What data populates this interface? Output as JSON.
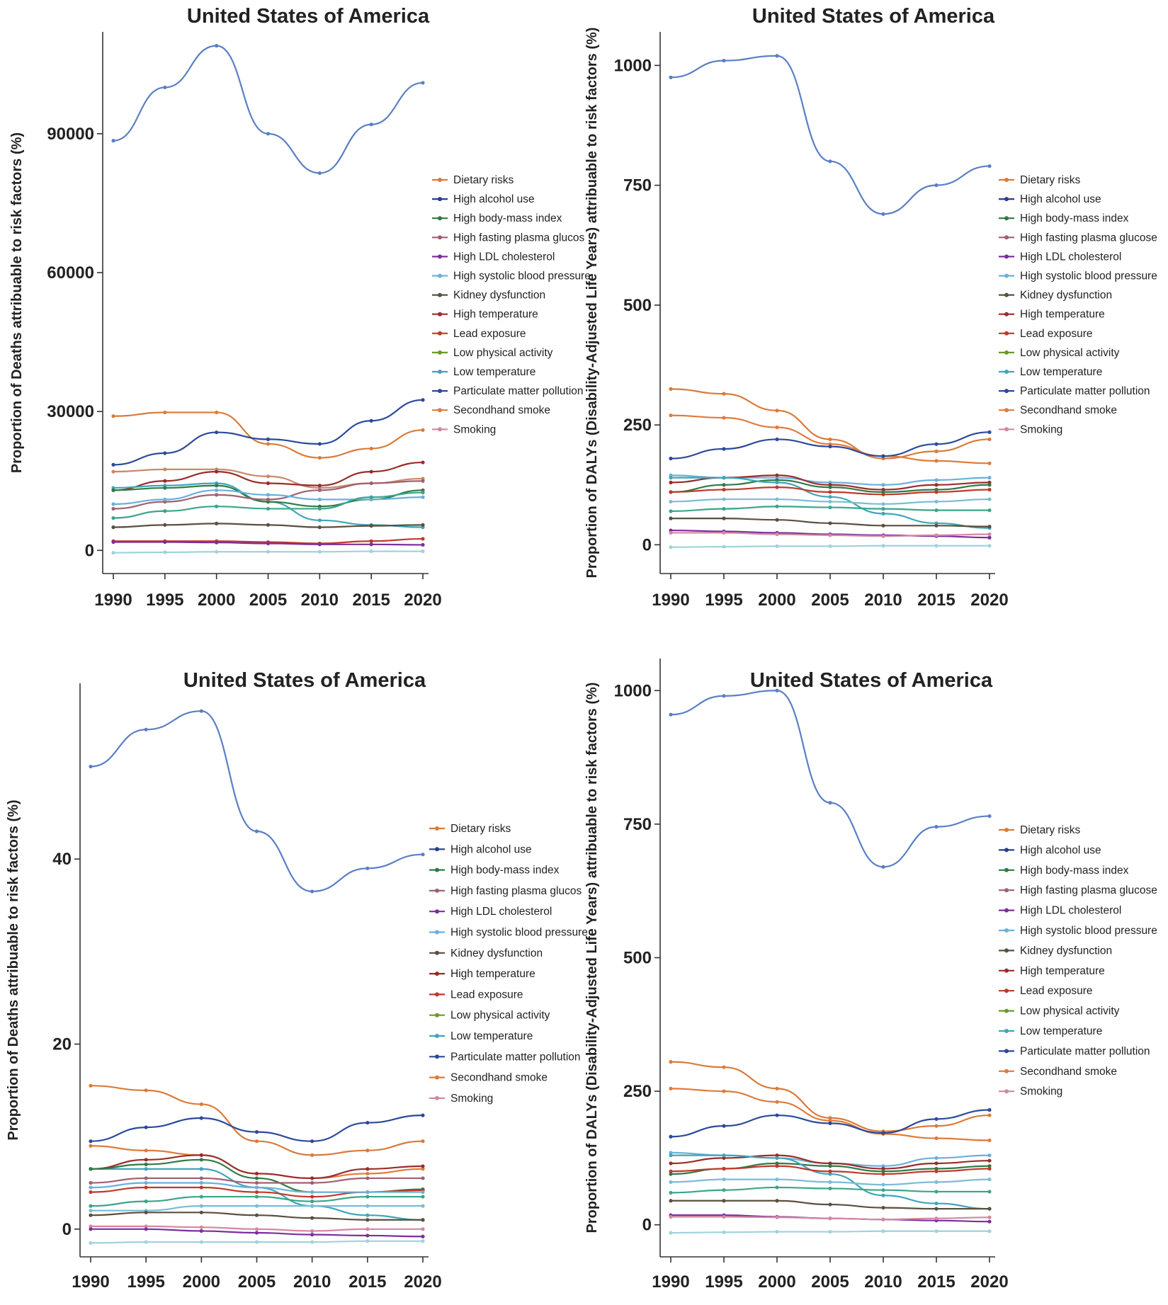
{
  "legend_items": [
    {
      "name": "Dietary risks",
      "color": "#d97b3a"
    },
    {
      "name": "High alcohol use",
      "color": "#283e8c"
    },
    {
      "name": "High body-mass index",
      "color": "#2f7a45"
    },
    {
      "name": "High fasting plasma glucos",
      "color": "#a06070"
    },
    {
      "name": "High LDL cholesterol",
      "color": "#7b2f9a"
    },
    {
      "name": "High systolic blood pressure",
      "color": "#6bb0da"
    },
    {
      "name": "Kidney dysfunction",
      "color": "#5a5040"
    },
    {
      "name": "High temperature",
      "color": "#9a2c2c"
    },
    {
      "name": "Lead exposure",
      "color": "#c0392b"
    },
    {
      "name": "Low physical activity",
      "color": "#6a9a2a"
    },
    {
      "name": "Low temperature",
      "color": "#3fa6b8"
    },
    {
      "name": "Particulate matter pollution",
      "color": "#2b4a9a"
    },
    {
      "name": "Secondhand smoke",
      "color": "#e07b3c"
    },
    {
      "name": "Smoking",
      "color": "#d487a0"
    }
  ],
  "chart_data": [
    {
      "type": "line",
      "title": "United States of America",
      "ylabel": "Proportion of Deaths attribuable to risk factors (%)",
      "xlabel": "",
      "x": [
        1990,
        1995,
        2000,
        2005,
        2010,
        2015,
        2020
      ],
      "xticks": [
        "1990",
        "1995",
        "2000",
        "2005",
        "2010",
        "2015",
        "2020"
      ],
      "yticks": [
        "0",
        "30000",
        "60000",
        "90000"
      ],
      "ylim": [
        -5000,
        112000
      ],
      "legend_items": [
        "Dietary risks",
        "High alcohol use",
        "High body-mass index",
        "High fasting plasma glucos",
        "High LDL cholesterol",
        "High systolic blood pressure",
        "Kidney dysfunction",
        "High temperature",
        "Lead exposure",
        "Low physical activity",
        "Low temperature",
        "Particulate matter pollution",
        "Secondhand smoke",
        "Smoking"
      ],
      "series": [
        {
          "color": "#5a7fc4",
          "values": [
            88500,
            100000,
            109000,
            90000,
            81500,
            92000,
            101000
          ]
        },
        {
          "color": "#d97b3a",
          "values": [
            29000,
            29800,
            29800,
            23000,
            20000,
            22000,
            26000
          ]
        },
        {
          "color": "#2b4a9a",
          "values": [
            18500,
            21000,
            25500,
            24000,
            23000,
            28000,
            32500
          ]
        },
        {
          "color": "#c98a6a",
          "values": [
            17000,
            17500,
            17500,
            16000,
            13500,
            14500,
            15500
          ]
        },
        {
          "color": "#9a2c2c",
          "values": [
            13000,
            15000,
            17000,
            14500,
            14000,
            17000,
            19000
          ]
        },
        {
          "color": "#3fa6b8",
          "values": [
            13500,
            14000,
            14500,
            10500,
            6500,
            5500,
            5000
          ]
        },
        {
          "color": "#2f7a45",
          "values": [
            13000,
            13500,
            14000,
            10500,
            9500,
            11000,
            13000
          ]
        },
        {
          "color": "#a06070",
          "values": [
            9000,
            10500,
            12000,
            11000,
            13000,
            14500,
            15000
          ]
        },
        {
          "color": "#6bb0da",
          "values": [
            10000,
            11000,
            13000,
            12000,
            11000,
            11000,
            11500
          ]
        },
        {
          "color": "#3aa58a",
          "values": [
            7000,
            8500,
            9500,
            9000,
            9000,
            11500,
            12500
          ]
        },
        {
          "color": "#5a5040",
          "values": [
            5000,
            5500,
            5800,
            5500,
            5000,
            5300,
            5500
          ]
        },
        {
          "color": "#c0392b",
          "values": [
            2000,
            2000,
            2000,
            1800,
            1500,
            2000,
            2500
          ]
        },
        {
          "color": "#7b2f9a",
          "values": [
            1800,
            1800,
            1700,
            1500,
            1300,
            1300,
            1200
          ]
        },
        {
          "color": "#9fd3dd",
          "values": [
            -500,
            -400,
            -300,
            -300,
            -300,
            -200,
            -200
          ]
        }
      ]
    },
    {
      "type": "line",
      "title": "United States of America",
      "ylabel": "Proportion of DALYs (Disability-Adjusted Life Years) attribuable to risk factors (%)",
      "xlabel": "",
      "x": [
        1990,
        1995,
        2000,
        2005,
        2010,
        2015,
        2020
      ],
      "xticks": [
        "1990",
        "1995",
        "2000",
        "2005",
        "2010",
        "2015",
        "2020"
      ],
      "yticks": [
        "0",
        "250",
        "500",
        "750",
        "1000"
      ],
      "ylim": [
        -60,
        1070
      ],
      "legend_items": [
        "Dietary risks",
        "High alcohol use",
        "High body-mass index",
        "High fasting plasma glucose",
        "High LDL cholesterol",
        "High systolic blood pressure",
        "Kidney dysfunction",
        "High temperature",
        "Lead exposure",
        "Low physical activity",
        "Low temperature",
        "Particulate matter pollution",
        "Secondhand smoke",
        "Smoking"
      ],
      "series": [
        {
          "color": "#5a7fc4",
          "values": [
            975,
            1010,
            1020,
            800,
            690,
            750,
            790
          ]
        },
        {
          "color": "#d97b3a",
          "values": [
            325,
            315,
            280,
            220,
            180,
            195,
            220
          ]
        },
        {
          "color": "#e07b3c",
          "values": [
            270,
            265,
            245,
            210,
            185,
            175,
            170
          ]
        },
        {
          "color": "#2b4a9a",
          "values": [
            180,
            200,
            220,
            205,
            185,
            210,
            235
          ]
        },
        {
          "color": "#6bb0da",
          "values": [
            145,
            140,
            140,
            130,
            125,
            135,
            140
          ]
        },
        {
          "color": "#9a2c2c",
          "values": [
            130,
            140,
            145,
            125,
            115,
            125,
            130
          ]
        },
        {
          "color": "#2f7a45",
          "values": [
            110,
            125,
            135,
            120,
            110,
            115,
            125
          ]
        },
        {
          "color": "#3fa6b8",
          "values": [
            140,
            140,
            130,
            100,
            65,
            45,
            35
          ]
        },
        {
          "color": "#c0392b",
          "values": [
            110,
            115,
            120,
            110,
            105,
            110,
            115
          ]
        },
        {
          "color": "#7bbcd6",
          "values": [
            90,
            95,
            95,
            90,
            85,
            90,
            95
          ]
        },
        {
          "color": "#3aa58a",
          "values": [
            70,
            75,
            80,
            78,
            75,
            72,
            72
          ]
        },
        {
          "color": "#5a5040",
          "values": [
            55,
            55,
            52,
            45,
            40,
            40,
            38
          ]
        },
        {
          "color": "#7b2f9a",
          "values": [
            30,
            28,
            25,
            22,
            20,
            18,
            15
          ]
        },
        {
          "color": "#d487a0",
          "values": [
            25,
            25,
            22,
            20,
            18,
            20,
            22
          ]
        },
        {
          "color": "#9fd3dd",
          "values": [
            -5,
            -4,
            -3,
            -3,
            -2,
            -2,
            -2
          ]
        }
      ]
    },
    {
      "type": "line",
      "title": "United States of America",
      "ylabel": "Proportion of Deaths attribuable to risk factors (%)",
      "xlabel": "",
      "x": [
        1990,
        1995,
        2000,
        2005,
        2010,
        2015,
        2020
      ],
      "xticks": [
        "1990",
        "1995",
        "2000",
        "2005",
        "2010",
        "2015",
        "2020"
      ],
      "yticks": [
        "0",
        "20",
        "40"
      ],
      "ylim": [
        -3,
        59
      ],
      "legend_items": [
        "Dietary risks",
        "High alcohol use",
        "High body-mass index",
        "High fasting plasma glucos",
        "High LDL cholesterol",
        "High systolic blood pressure",
        "Kidney dysfunction",
        "High temperature",
        "Lead exposure",
        "Low physical activity",
        "Low temperature",
        "Particulate matter pollution",
        "Secondhand smoke",
        "Smoking"
      ],
      "series": [
        {
          "color": "#5a7fc4",
          "values": [
            50,
            54,
            56,
            43,
            36.5,
            39,
            40.5
          ]
        },
        {
          "color": "#d97b3a",
          "values": [
            15.5,
            15,
            13.5,
            9.5,
            8,
            8.5,
            9.5
          ]
        },
        {
          "color": "#2b4a9a",
          "values": [
            9.5,
            11,
            12,
            10.5,
            9.5,
            11.5,
            12.3
          ]
        },
        {
          "color": "#e07b3c",
          "values": [
            9,
            8.5,
            8,
            6,
            5.5,
            6,
            6.5
          ]
        },
        {
          "color": "#9a2c2c",
          "values": [
            6.5,
            7.5,
            8,
            6,
            5.5,
            6.5,
            6.8
          ]
        },
        {
          "color": "#3fa6b8",
          "values": [
            6.5,
            6.5,
            6.5,
            4.5,
            2.5,
            1.5,
            1
          ]
        },
        {
          "color": "#2f7a45",
          "values": [
            6.5,
            7,
            7.5,
            5.5,
            4,
            4,
            4.3
          ]
        },
        {
          "color": "#a06070",
          "values": [
            5,
            5.5,
            5.5,
            5,
            5,
            5.5,
            5.5
          ]
        },
        {
          "color": "#c0392b",
          "values": [
            4,
            4.5,
            4.5,
            4,
            3.5,
            4,
            4.2
          ]
        },
        {
          "color": "#6bb0da",
          "values": [
            4.5,
            5,
            5,
            4.5,
            4,
            4,
            4
          ]
        },
        {
          "color": "#3aa58a",
          "values": [
            2.5,
            3,
            3.5,
            3.5,
            3,
            3.5,
            3.5
          ]
        },
        {
          "color": "#7bbcd6",
          "values": [
            2,
            2,
            2.5,
            2.5,
            2.5,
            2.5,
            2.5
          ]
        },
        {
          "color": "#5a5040",
          "values": [
            1.5,
            1.8,
            1.8,
            1.5,
            1.2,
            1,
            1
          ]
        },
        {
          "color": "#d487a0",
          "values": [
            0.3,
            0.3,
            0.2,
            0,
            -0.2,
            0,
            0
          ]
        },
        {
          "color": "#7b2f9a",
          "values": [
            0,
            0,
            -0.2,
            -0.4,
            -0.6,
            -0.7,
            -0.8
          ]
        },
        {
          "color": "#9fd3dd",
          "values": [
            -1.5,
            -1.4,
            -1.4,
            -1.4,
            -1.4,
            -1.3,
            -1.3
          ]
        }
      ]
    },
    {
      "type": "line",
      "title": "United States of America",
      "ylabel": "Proportion of DALYs (Disability-Adjusted Life Years) attribuable to risk factors (%)",
      "xlabel": "",
      "x": [
        1990,
        1995,
        2000,
        2005,
        2010,
        2015,
        2020
      ],
      "xticks": [
        "1990",
        "1995",
        "2000",
        "2005",
        "2010",
        "2015",
        "2020"
      ],
      "yticks": [
        "0",
        "250",
        "500",
        "750",
        "1000"
      ],
      "ylim": [
        -60,
        1060
      ],
      "legend_items": [
        "Dietary risks",
        "High alcohol use",
        "High body-mass index",
        "High fasting plasma glucose",
        "High LDL cholesterol",
        "High systolic blood pressure",
        "Kidney dysfunction",
        "High temperature",
        "Lead exposure",
        "Low physical activity",
        "Low temperature",
        "Particulate matter pollution",
        "Secondhand smoke",
        "Smoking"
      ],
      "series": [
        {
          "color": "#5a7fc4",
          "values": [
            955,
            990,
            1000,
            790,
            670,
            745,
            765
          ]
        },
        {
          "color": "#d97b3a",
          "values": [
            305,
            295,
            255,
            200,
            175,
            185,
            205
          ]
        },
        {
          "color": "#e07b3c",
          "values": [
            255,
            250,
            230,
            195,
            170,
            162,
            158
          ]
        },
        {
          "color": "#2b4a9a",
          "values": [
            165,
            185,
            205,
            190,
            172,
            198,
            215
          ]
        },
        {
          "color": "#6bb0da",
          "values": [
            135,
            130,
            125,
            115,
            110,
            125,
            130
          ]
        },
        {
          "color": "#9a2c2c",
          "values": [
            115,
            125,
            130,
            115,
            105,
            115,
            120
          ]
        },
        {
          "color": "#2f7a45",
          "values": [
            95,
            105,
            115,
            110,
            100,
            105,
            110
          ]
        },
        {
          "color": "#3fa6b8",
          "values": [
            130,
            130,
            125,
            95,
            55,
            40,
            30
          ]
        },
        {
          "color": "#c0392b",
          "values": [
            100,
            105,
            110,
            100,
            95,
            100,
            105
          ]
        },
        {
          "color": "#7bbcd6",
          "values": [
            80,
            85,
            85,
            80,
            75,
            80,
            85
          ]
        },
        {
          "color": "#3aa58a",
          "values": [
            60,
            65,
            70,
            68,
            65,
            62,
            62
          ]
        },
        {
          "color": "#5a5040",
          "values": [
            45,
            45,
            45,
            38,
            32,
            30,
            30
          ]
        },
        {
          "color": "#7b2f9a",
          "values": [
            18,
            18,
            15,
            12,
            10,
            8,
            6
          ]
        },
        {
          "color": "#d487a0",
          "values": [
            15,
            15,
            14,
            12,
            10,
            12,
            14
          ]
        },
        {
          "color": "#9fd3dd",
          "values": [
            -15,
            -14,
            -13,
            -13,
            -12,
            -12,
            -12
          ]
        }
      ]
    }
  ]
}
